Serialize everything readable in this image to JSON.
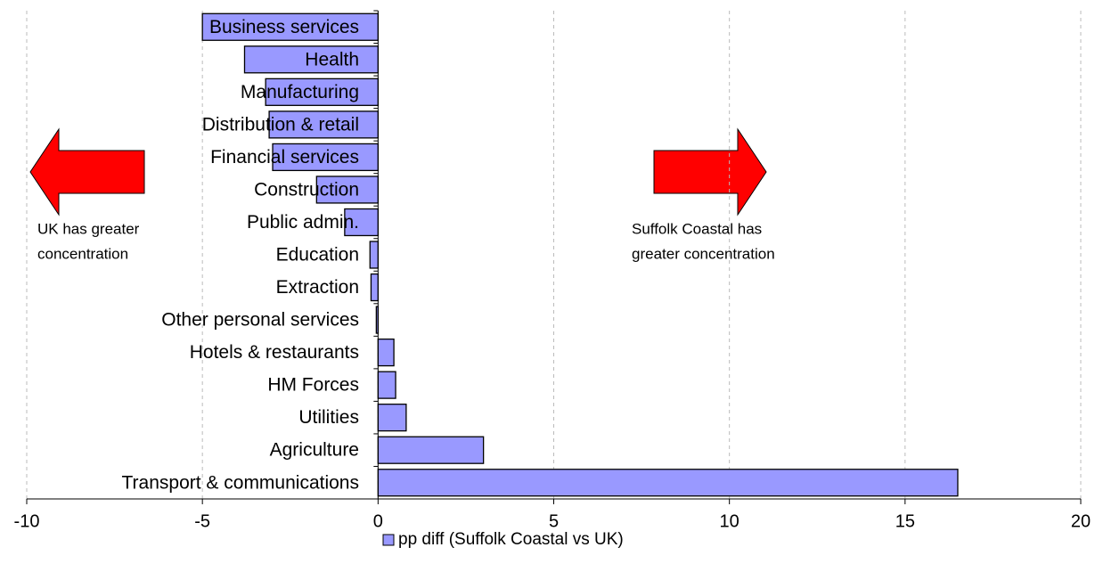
{
  "chart_data": {
    "type": "bar",
    "orientation": "horizontal",
    "categories": [
      "Business services",
      "Health",
      "Manufacturing",
      "Distribution & retail",
      "Financial services",
      "Construction",
      "Public admin.",
      "Education",
      "Extraction",
      "Other personal services",
      "Hotels & restaurants",
      "HM Forces",
      "Utilities",
      "Agriculture",
      "Transport & communications"
    ],
    "series": [
      {
        "name": "pp diff (Suffolk Coastal vs UK)",
        "color": "#9999ff",
        "values": [
          -5.0,
          -3.8,
          -3.2,
          -3.1,
          -3.0,
          -1.75,
          -0.95,
          -0.23,
          -0.2,
          -0.05,
          0.45,
          0.5,
          0.8,
          3.0,
          16.5
        ]
      }
    ],
    "xlim": [
      -10,
      20
    ],
    "xticks": [
      -10,
      -5,
      0,
      5,
      10,
      15,
      20
    ],
    "grid": true,
    "legend": "bottom",
    "annotations": [
      [
        "UK has greater",
        "concentration"
      ],
      [
        "Suffolk Coastal has",
        "greater concentration"
      ]
    ]
  }
}
